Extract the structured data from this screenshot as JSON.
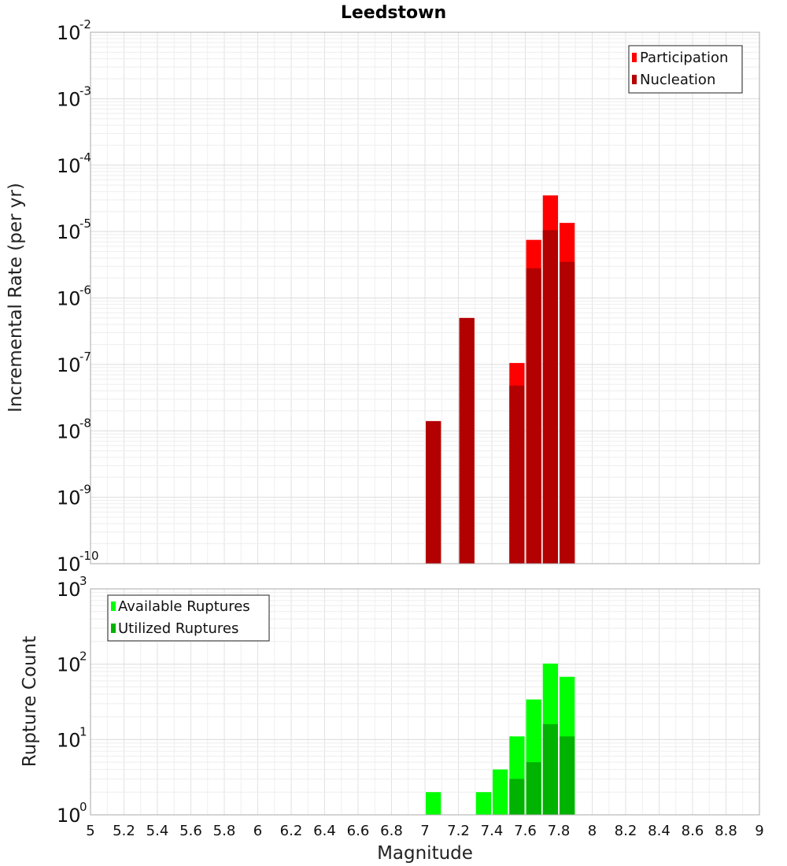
{
  "chart_data": [
    {
      "type": "bar",
      "title": "Leedstown",
      "xlabel": "Magnitude",
      "ylabel": "Incremental Rate (per yr)",
      "yscale": "log",
      "xlim": [
        5,
        9
      ],
      "ylim_exponents": [
        -10,
        -2
      ],
      "legend_position": "top-right",
      "bin_width": 0.1,
      "x": [
        7.05,
        7.25,
        7.55,
        7.65,
        7.75,
        7.85
      ],
      "series": [
        {
          "name": "Participation",
          "color": "#ff0000",
          "values": [
            1.4e-08,
            5e-07,
            1.05e-07,
            7.5e-06,
            3.5e-05,
            1.35e-05
          ]
        },
        {
          "name": "Nucleation",
          "color": "#b30000",
          "values": [
            1.4e-08,
            5e-07,
            4.8e-08,
            2.8e-06,
            1.05e-05,
            3.5e-06
          ]
        }
      ]
    },
    {
      "type": "bar",
      "title": "",
      "xlabel": "Magnitude",
      "ylabel": "Rupture Count",
      "yscale": "log",
      "xlim": [
        5,
        9
      ],
      "ylim_exponents": [
        0,
        3
      ],
      "legend_position": "top-left",
      "bin_width": 0.1,
      "x": [
        7.05,
        7.25,
        7.35,
        7.45,
        7.55,
        7.65,
        7.75,
        7.85
      ],
      "series": [
        {
          "name": "Available Ruptures",
          "color": "#00ff00",
          "values": [
            2,
            1,
            2,
            4,
            11,
            34,
            102,
            68
          ]
        },
        {
          "name": "Utilized Ruptures",
          "color": "#00b300",
          "values": [
            1,
            1,
            0,
            0,
            3,
            5,
            16,
            11
          ]
        }
      ]
    }
  ],
  "x_ticks": [
    "5",
    "5.2",
    "5.4",
    "5.6",
    "5.8",
    "6",
    "6.2",
    "6.4",
    "6.6",
    "6.8",
    "7",
    "7.2",
    "7.4",
    "7.6",
    "7.8",
    "8",
    "8.2",
    "8.4",
    "8.6",
    "8.8",
    "9"
  ],
  "y_tick_base": "10",
  "top_y_exponents": [
    "-10",
    "-9",
    "-8",
    "-7",
    "-6",
    "-5",
    "-4",
    "-3",
    "-2"
  ],
  "bottom_y_exponents": [
    "0",
    "1",
    "2",
    "3"
  ]
}
